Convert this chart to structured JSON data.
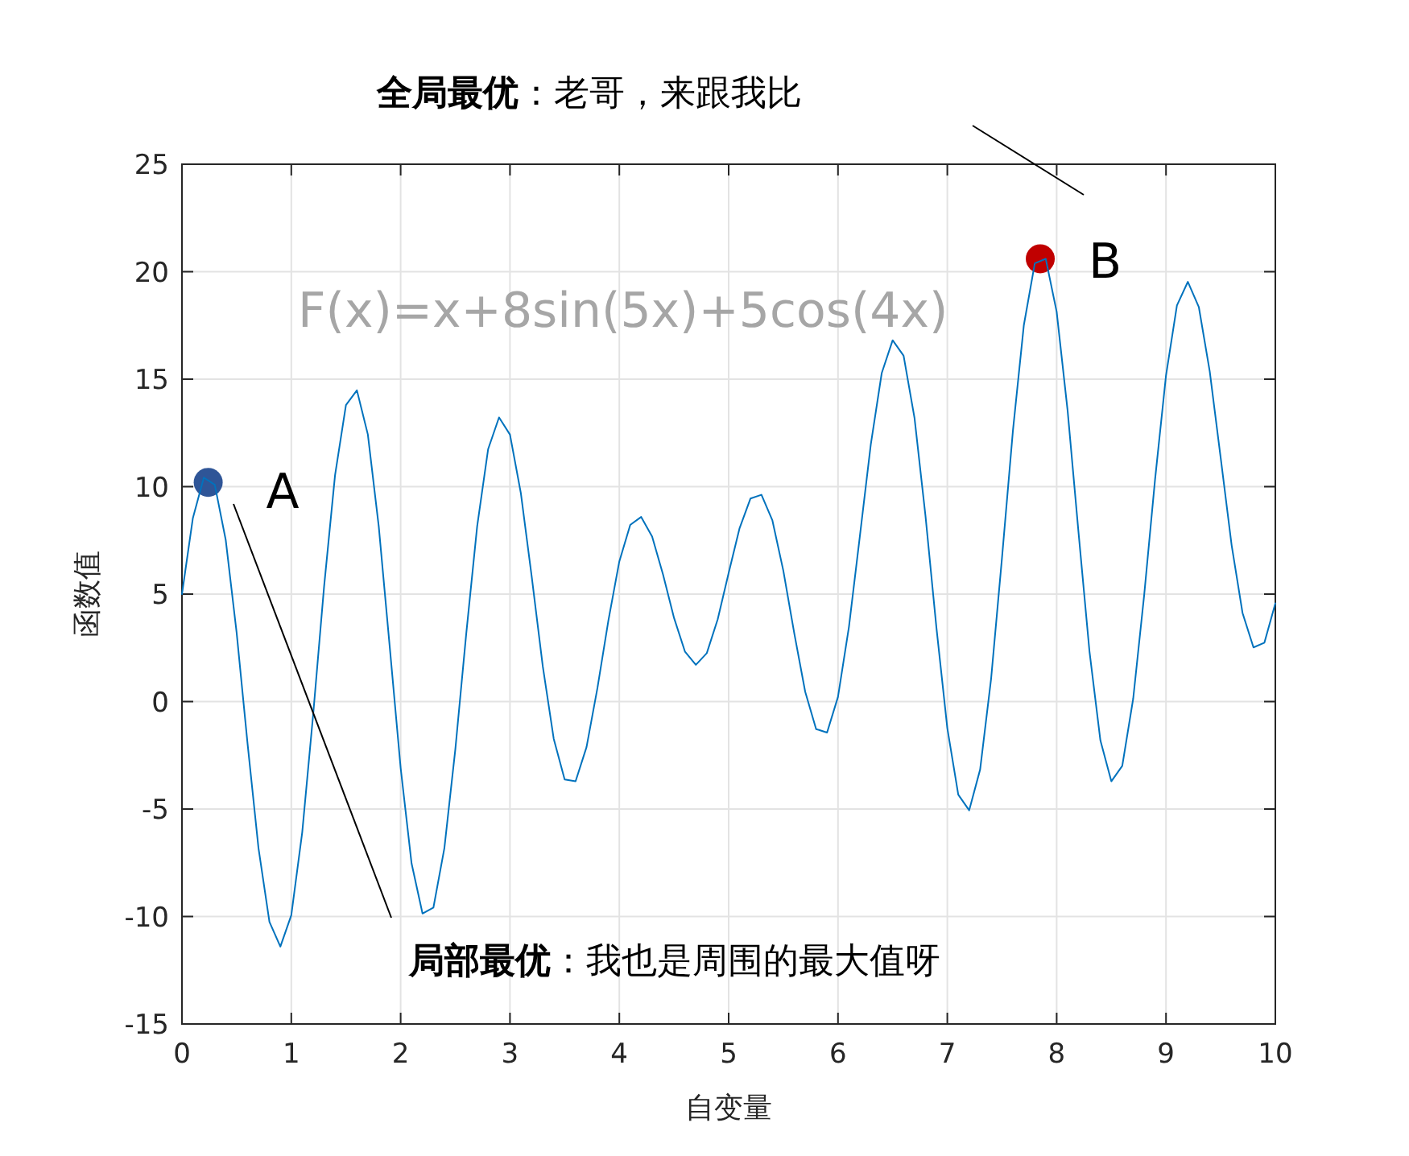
{
  "chart_data": {
    "type": "line",
    "xlabel": "自变量",
    "ylabel": "函数值",
    "xlim": [
      0,
      10
    ],
    "xticks": [
      0,
      1,
      2,
      3,
      4,
      5,
      6,
      7,
      8,
      9,
      10
    ],
    "ylim": [
      -15,
      25
    ],
    "yticks": [
      -15,
      -10,
      -5,
      0,
      5,
      10,
      15,
      20,
      25
    ],
    "grid": true,
    "x": [
      0,
      0.1,
      0.2,
      0.3,
      0.4,
      0.5,
      0.6,
      0.7,
      0.8,
      0.9,
      1,
      1.1,
      1.2,
      1.3,
      1.4,
      1.5,
      1.6,
      1.7,
      1.8,
      1.9,
      2,
      2.1,
      2.2,
      2.3,
      2.4,
      2.5,
      2.6,
      2.7,
      2.8,
      2.9,
      3,
      3.1,
      3.2,
      3.3,
      3.4,
      3.5,
      3.6,
      3.7,
      3.8,
      3.9,
      4,
      4.1,
      4.2,
      4.3,
      4.4,
      4.5,
      4.6,
      4.7,
      4.8,
      4.9,
      5,
      5.1,
      5.2,
      5.3,
      5.4,
      5.5,
      5.6,
      5.7,
      5.8,
      5.9,
      6,
      6.1,
      6.2,
      6.3,
      6.4,
      6.5,
      6.6,
      6.7,
      6.8,
      6.9,
      7,
      7.1,
      7.2,
      7.3,
      7.4,
      7.5,
      7.6,
      7.7,
      7.8,
      7.9,
      8,
      8.1,
      8.2,
      8.3,
      8.4,
      8.5,
      8.6,
      8.7,
      8.8,
      8.9,
      9,
      9.1,
      9.2,
      9.3,
      9.4,
      9.5,
      9.6,
      9.7,
      9.8,
      9.9,
      10
    ],
    "series": [
      {
        "type": "line",
        "color": "#0072bd",
        "values": [
          5.0,
          8.54,
          10.42,
          10.09,
          7.53,
          3.21,
          -1.96,
          -6.82,
          -10.25,
          -11.4,
          -9.94,
          -6.08,
          -0.6,
          5.36,
          10.53,
          13.8,
          14.48,
          12.43,
          8.14,
          2.56,
          -3.08,
          -7.53,
          -9.86,
          -9.58,
          -6.82,
          -2.23,
          3.16,
          8.16,
          11.74,
          13.22,
          12.42,
          9.68,
          5.76,
          1.64,
          -1.73,
          -3.62,
          -3.71,
          -2.12,
          0.63,
          3.77,
          6.52,
          8.22,
          8.59,
          7.68,
          5.91,
          3.9,
          2.33,
          1.71,
          2.25,
          3.83,
          5.98,
          8.07,
          9.45,
          9.62,
          8.43,
          6.09,
          3.18,
          0.46,
          -1.28,
          -1.44,
          0.22,
          3.47,
          7.69,
          11.96,
          15.28,
          16.81,
          16.09,
          13.19,
          8.65,
          3.45,
          -1.24,
          -4.33,
          -5.06,
          -3.16,
          1.04,
          6.69,
          12.61,
          17.52,
          20.39,
          20.6,
          18.13,
          13.54,
          7.86,
          2.34,
          -1.81,
          -3.71,
          -2.99,
          0.14,
          4.94,
          10.34,
          15.17,
          18.43,
          19.53,
          18.36,
          15.36,
          11.34,
          7.28,
          4.12,
          2.52,
          2.74,
          4.57
        ]
      },
      {
        "type": "scatter",
        "marker": "circle",
        "color": "#2f5597",
        "x": [
          0.24
        ],
        "values": [
          10.2
        ]
      },
      {
        "type": "scatter",
        "marker": "circle",
        "color": "#c00000",
        "x": [
          7.85
        ],
        "values": [
          20.6
        ]
      }
    ],
    "annotations": [
      "F(x)=x+8sin(5x)+5cos(4x)",
      {
        "text": "A",
        "x": 0.24,
        "y": 10.2
      },
      {
        "text": "B",
        "x": 7.85,
        "y": 20.6
      },
      "局部最优",
      "：我也是周围的最大值呀",
      "全局最优",
      "：老哥，来跟我比"
    ]
  }
}
